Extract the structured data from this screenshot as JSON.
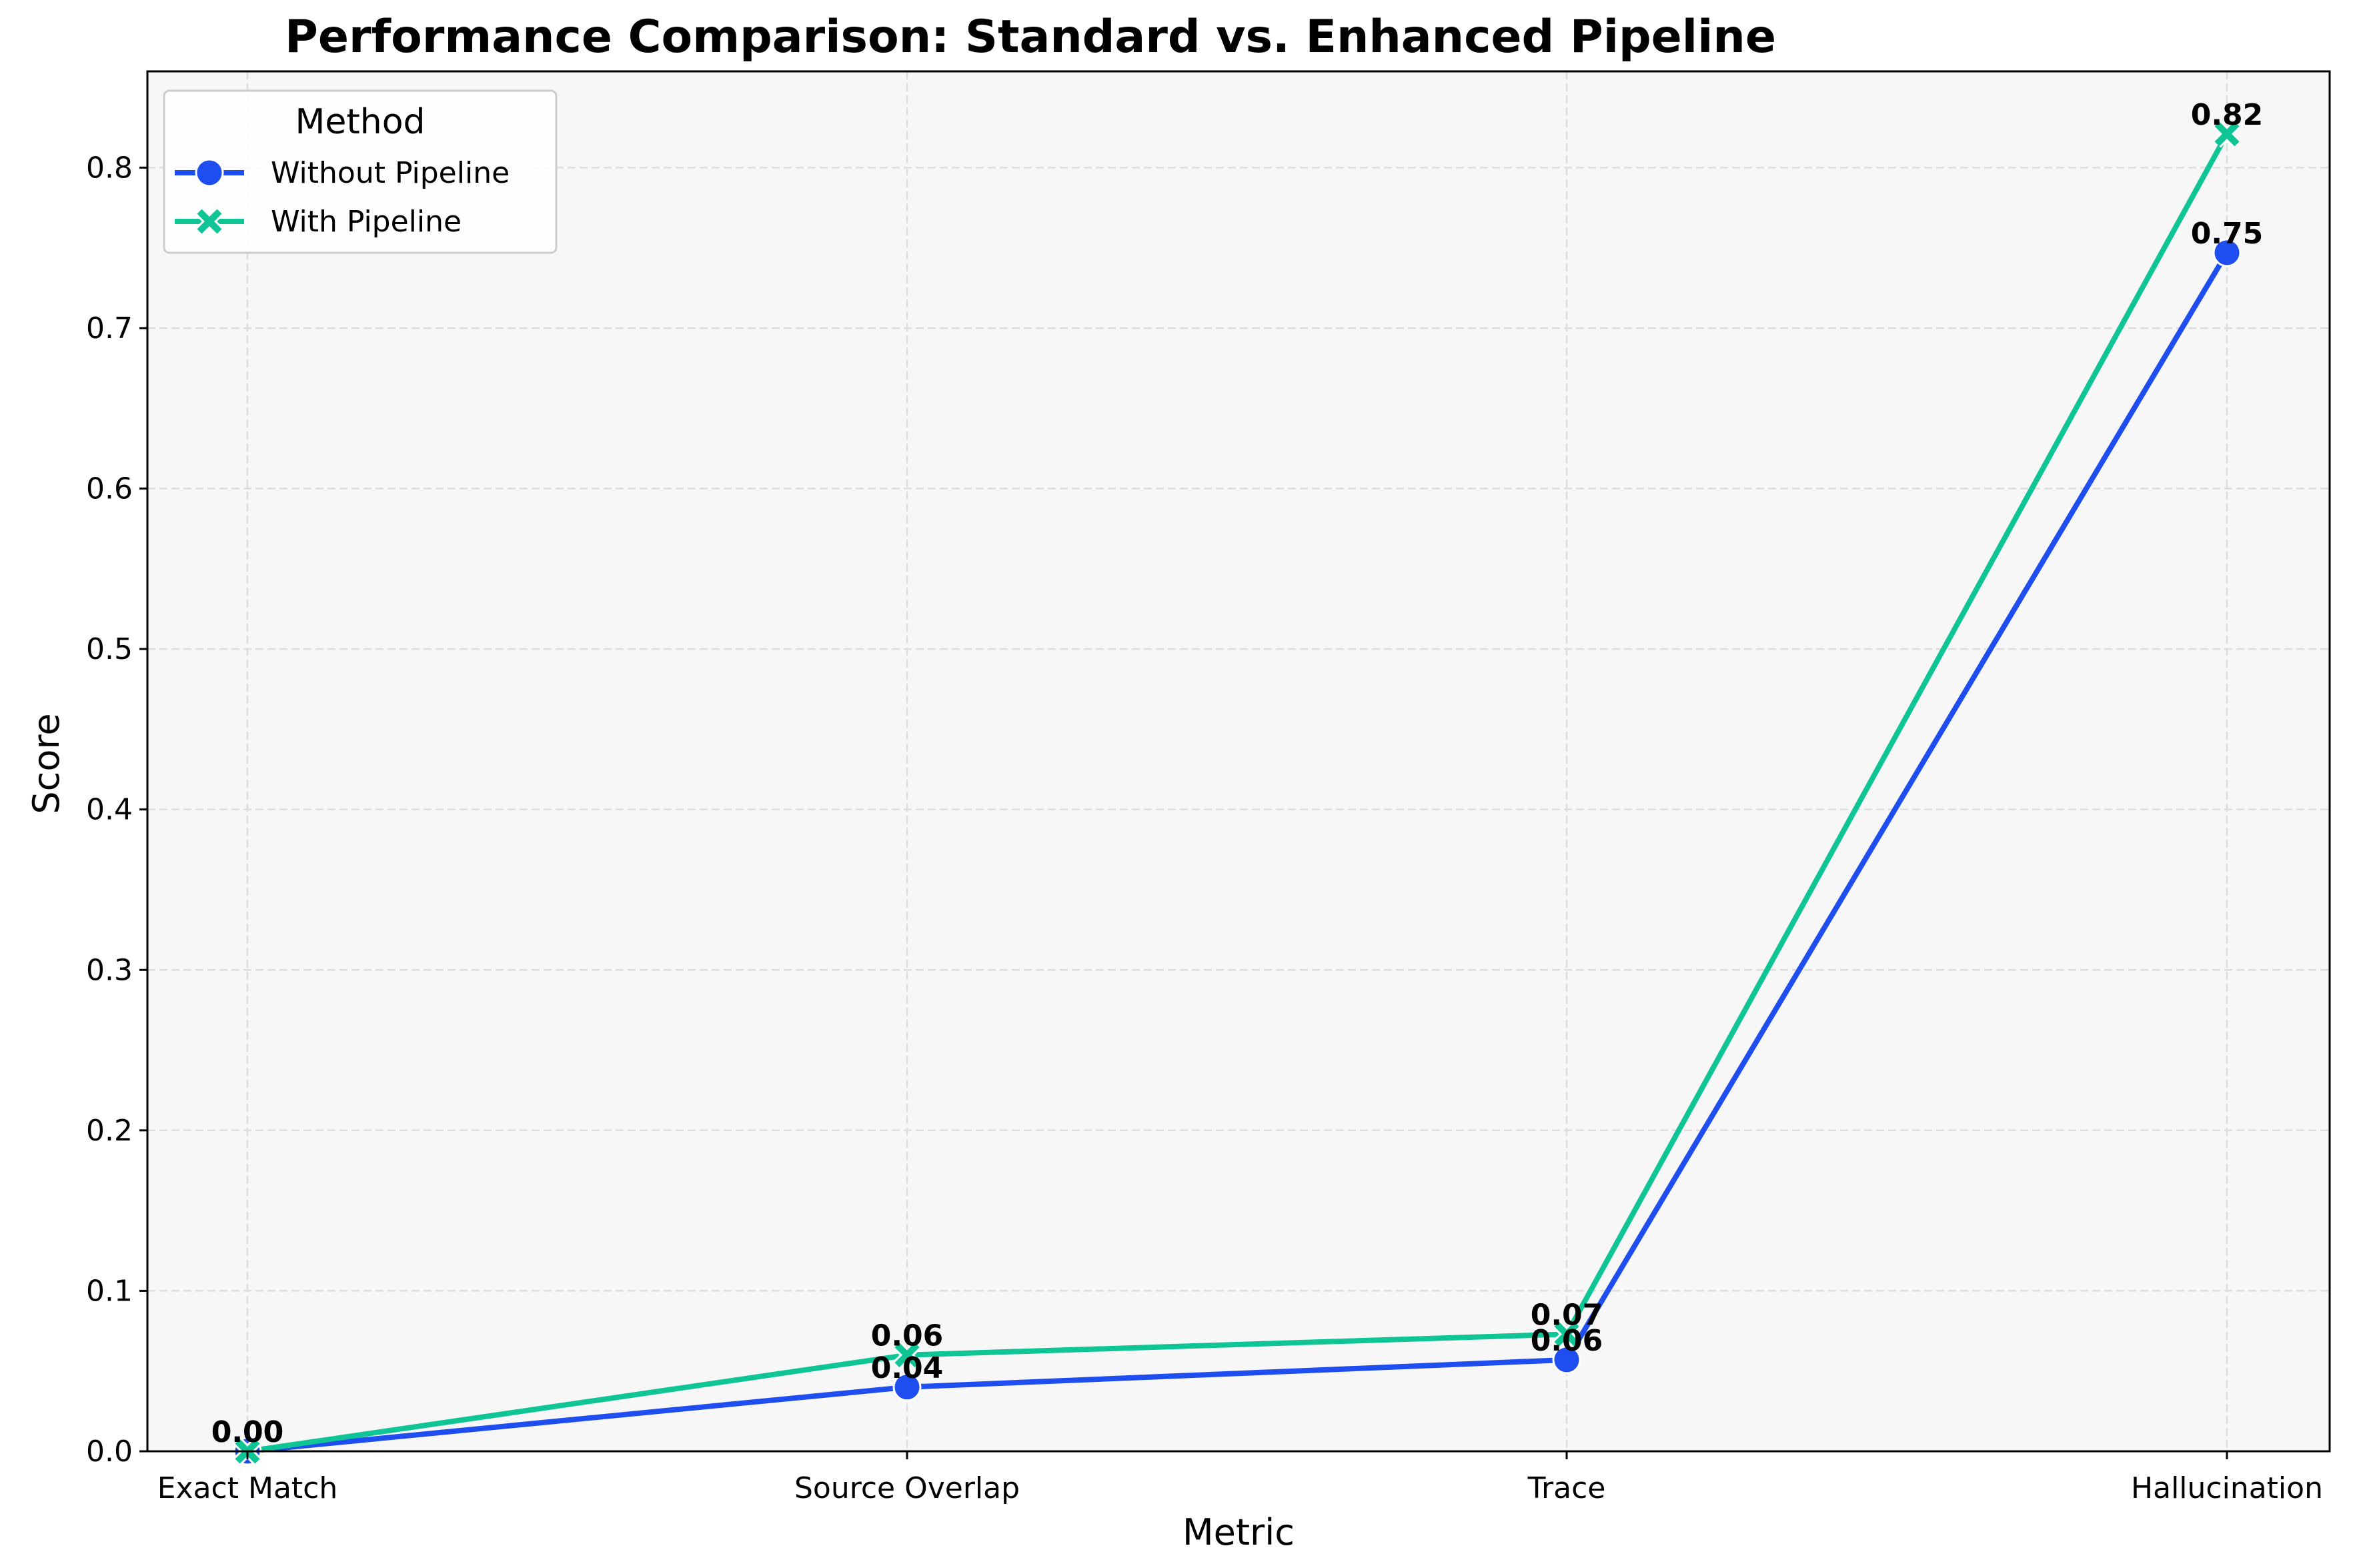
{
  "chart_data": {
    "type": "line",
    "title": "Performance Comparison: Standard vs. Enhanced Pipeline",
    "xlabel": "Metric",
    "ylabel": "Score",
    "categories": [
      "Exact Match",
      "Source Overlap",
      "Trace",
      "Hallucination"
    ],
    "ylim": [
      0,
      0.86
    ],
    "yticks": [
      "0.0",
      "0.1",
      "0.2",
      "0.3",
      "0.4",
      "0.5",
      "0.6",
      "0.7",
      "0.8"
    ],
    "grid": true,
    "legend": {
      "title": "Method",
      "position": "top-left"
    },
    "series": [
      {
        "name": "Without Pipeline",
        "marker": "circle",
        "color": "#1f4ef0",
        "values": [
          0.0,
          0.04,
          0.057,
          0.747
        ],
        "labels": [
          "0.00",
          "0.04",
          "0.06",
          "0.75"
        ]
      },
      {
        "name": "With Pipeline",
        "marker": "x",
        "color": "#0fc495",
        "values": [
          0.0,
          0.06,
          0.073,
          0.821
        ],
        "labels": [
          "0.00",
          "0.06",
          "0.07",
          "0.82"
        ]
      }
    ]
  }
}
